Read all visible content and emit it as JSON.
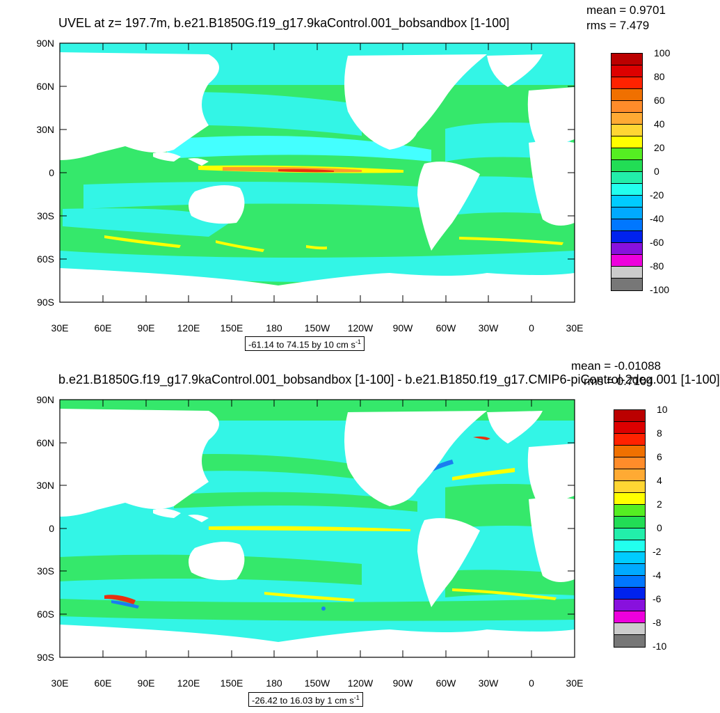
{
  "colors": {
    "ocean_base": "#35e86b",
    "cyan": "#33f5e6",
    "light_cyan": "#44ffff",
    "light_green": "#5fe838",
    "yellow": "#f8f800",
    "orange": "#ff9a2c",
    "red": "#e83010",
    "blue": "#1b7cf0",
    "land": "#ffffff"
  },
  "panels": [
    {
      "title": "UVEL at z= 197.7m, b.e21.B1850G.f19_g17.9kaControl.001_bobsandbox [1-100]",
      "mean": "mean = 0.9701",
      "rms": "rms = 7.479",
      "range_prefix": "-61.14 to 74.15 by 10 cm s",
      "range_sup": "-1",
      "colorbar_labels": [
        "100",
        "80",
        "60",
        "40",
        "20",
        "0",
        "-20",
        "-40",
        "-60",
        "-80",
        "-100"
      ],
      "colorbar_colors": [
        "#bb0000",
        "#dd0000",
        "#ff2200",
        "#f07000",
        "#ff8c2a",
        "#ffaa33",
        "#ffd633",
        "#ffff00",
        "#55ee22",
        "#22dd55",
        "#22eeaa",
        "#22ffee",
        "#00ccff",
        "#00aaff",
        "#0077ff",
        "#0022ee",
        "#8811dd",
        "#ee00dd",
        "#cccccc",
        "#777777"
      ]
    },
    {
      "title": "b.e21.B1850G.f19_g17.9kaControl.001_bobsandbox [1-100] - b.e21.B1850.f19_g17.CMIP6-piControl-2deg.001 [1-100]",
      "mean": "mean = -0.01088",
      "rms": "rms = 0.7104",
      "range_prefix": "-26.42 to 16.03 by 1 cm s",
      "range_sup": "-1",
      "colorbar_labels": [
        "10",
        "8",
        "6",
        "4",
        "2",
        "0",
        "-2",
        "-4",
        "-6",
        "-8",
        "-10"
      ],
      "colorbar_colors": [
        "#bb0000",
        "#dd0000",
        "#ff2200",
        "#f07000",
        "#ff8c2a",
        "#ffaa33",
        "#ffd633",
        "#ffff00",
        "#55ee22",
        "#22dd55",
        "#22eeaa",
        "#22ffee",
        "#00ccff",
        "#00aaff",
        "#0077ff",
        "#0022ee",
        "#8811dd",
        "#ee00dd",
        "#cccccc",
        "#777777"
      ]
    }
  ],
  "axes": {
    "lat_labels": [
      "90N",
      "60N",
      "30N",
      "0",
      "30S",
      "60S",
      "90S"
    ],
    "lon_labels": [
      "30E",
      "60E",
      "90E",
      "120E",
      "150E",
      "180",
      "150W",
      "120W",
      "90W",
      "60W",
      "30W",
      "0",
      "30E"
    ]
  }
}
